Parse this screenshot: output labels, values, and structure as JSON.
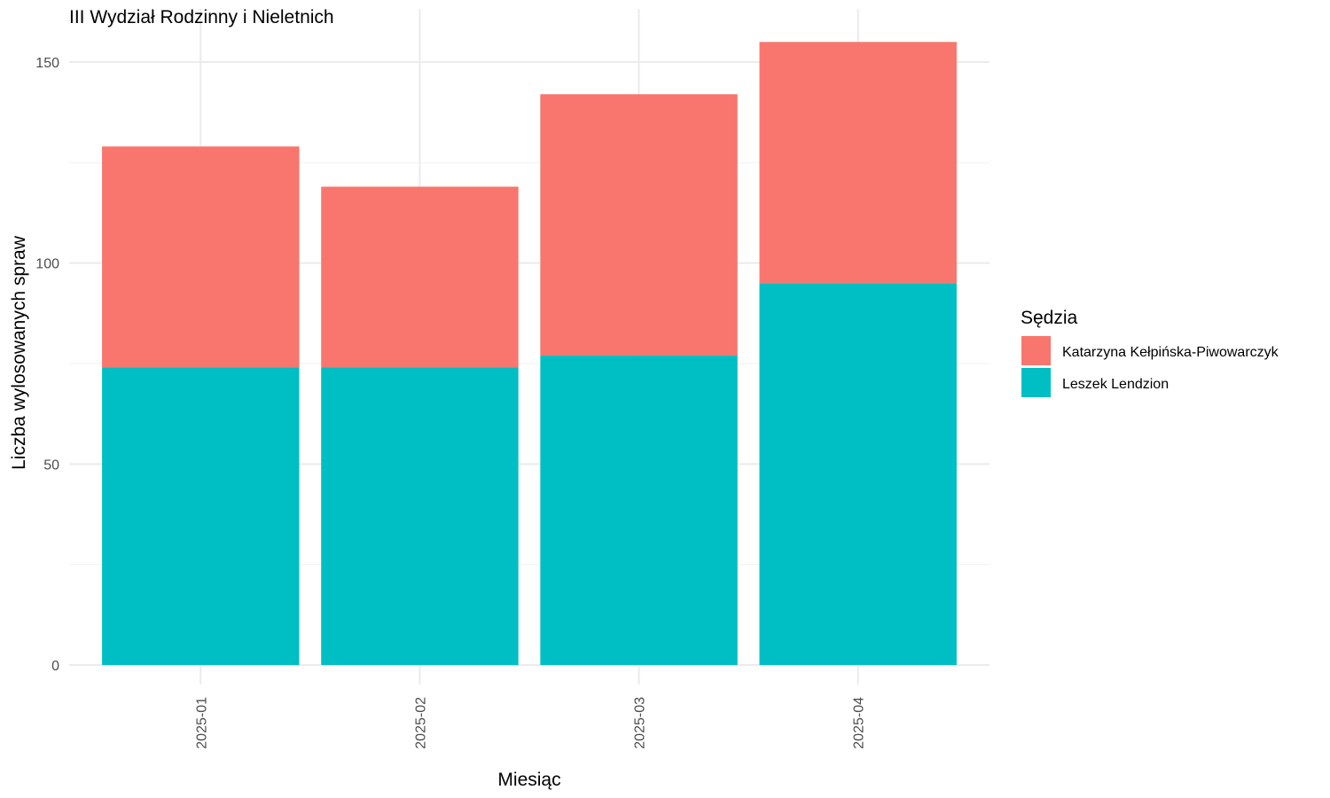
{
  "chart_data": {
    "type": "bar",
    "stacked": true,
    "title": "III Wydział Rodzinny i Nieletnich",
    "xlabel": "Miesiąc",
    "ylabel": "Liczba wylosowanych spraw",
    "categories": [
      "2025-01",
      "2025-02",
      "2025-03",
      "2025-04"
    ],
    "series": [
      {
        "name": "Leszek Lendzion",
        "color": "#00BFC4",
        "values": [
          74,
          74,
          77,
          95
        ]
      },
      {
        "name": "Katarzyna Kełpińska-Piwowarczyk",
        "color": "#F8766D",
        "values": [
          55,
          45,
          65,
          60
        ]
      }
    ],
    "ylim": [
      0,
      160
    ],
    "yticks": [
      0,
      50,
      100,
      150
    ],
    "grid": true,
    "legend": {
      "title": "Sędzia",
      "position": "right",
      "entries": [
        "Katarzyna Kełpińska-Piwowarczyk",
        "Leszek Lendzion"
      ]
    }
  }
}
